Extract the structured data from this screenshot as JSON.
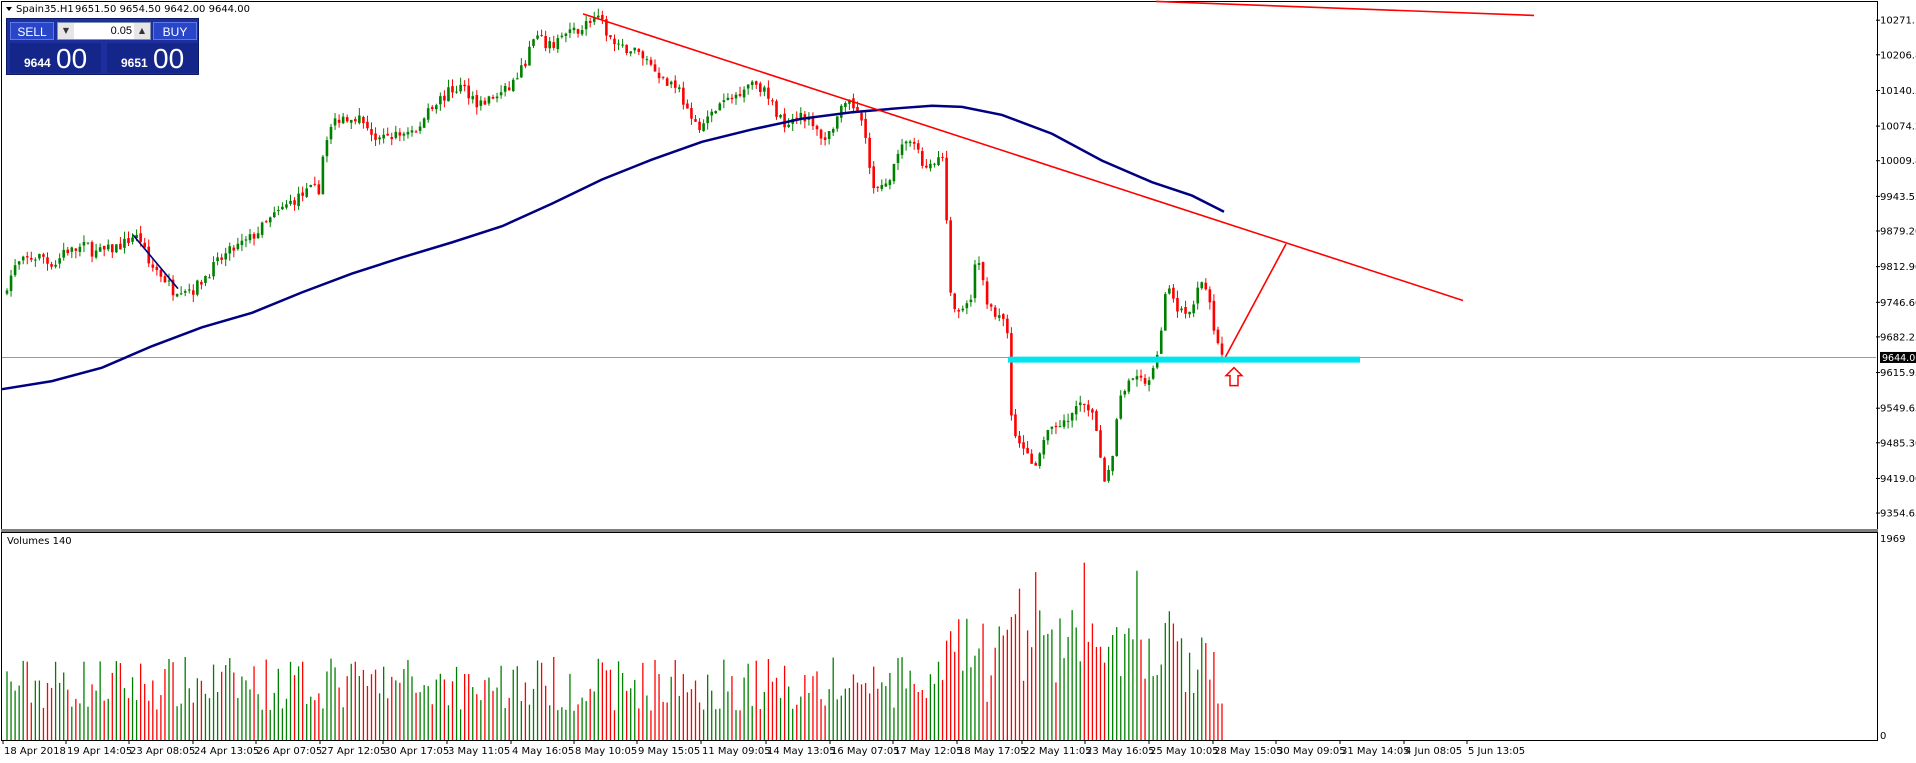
{
  "header": {
    "symbol": "Spain35.H1",
    "ohlc": "9651.50 9654.50 9642.00 9644.00"
  },
  "trade_panel": {
    "sell_label": "SELL",
    "buy_label": "BUY",
    "lot": "0.05",
    "dec_icon": "triangle-down-icon",
    "inc_icon": "triangle-up-icon",
    "sell_small": "9644",
    "sell_big": "00",
    "buy_small": "9651",
    "buy_big": "00"
  },
  "colors": {
    "up": "#008000",
    "down": "#ff0000",
    "ma": "#000080",
    "trendline": "#ff0000",
    "support_zone": "#00e5ee",
    "arrow": "#ff0000",
    "axis": "#000000",
    "price_tag_bg": "#000000"
  },
  "chart_data": [
    {
      "type": "candlestick",
      "title": "Spain35.H1",
      "ylim": [
        9325,
        10305
      ],
      "y_ticks": [
        "10271.15",
        "10206.80",
        "10140.50",
        "10074.20",
        "10009.85",
        "9943.55",
        "9879.20",
        "9812.90",
        "9746.60",
        "9682.25",
        "9615.95",
        "9549.65",
        "9485.30",
        "9419.00",
        "9354.65"
      ],
      "x_ticks": [
        "18 Apr 2018",
        "19 Apr 14:05",
        "23 Apr 08:05",
        "24 Apr 13:05",
        "26 Apr 07:05",
        "27 Apr 12:05",
        "30 Apr 17:05",
        "3 May 11:05",
        "4 May 16:05",
        "8 May 10:05",
        "9 May 15:05",
        "11 May 09:05",
        "14 May 13:05",
        "16 May 07:05",
        "17 May 12:05",
        "18 May 17:05",
        "22 May 11:05",
        "23 May 16:05",
        "25 May 10:05",
        "28 May 15:05",
        "30 May 09:05",
        "31 May 14:05",
        "4 Jun 08:05",
        "5 Jun 13:05"
      ],
      "current_price": 9644.0,
      "current_price_label": "9644.00",
      "series": [
        {
          "kind": "close_path",
          "points": [
            [
              0,
              9760
            ],
            [
              14,
              9815
            ],
            [
              24,
              9825
            ],
            [
              31,
              9830
            ],
            [
              41,
              9832
            ],
            [
              46,
              9820
            ],
            [
              55,
              9820
            ],
            [
              62,
              9845
            ],
            [
              70,
              9842
            ],
            [
              86,
              9852
            ],
            [
              92,
              9838
            ],
            [
              103,
              9842
            ],
            [
              109,
              9845
            ],
            [
              124,
              9858
            ],
            [
              131,
              9870
            ],
            [
              140,
              9862
            ],
            [
              145,
              9820
            ],
            [
              156,
              9805
            ],
            [
              165,
              9785
            ],
            [
              171,
              9770
            ],
            [
              181,
              9775
            ],
            [
              192,
              9770
            ],
            [
              203,
              9795
            ],
            [
              213,
              9815
            ],
            [
              221,
              9830
            ],
            [
              231,
              9845
            ],
            [
              245,
              9860
            ],
            [
              257,
              9880
            ],
            [
              271,
              9905
            ],
            [
              290,
              9935
            ],
            [
              309,
              9955
            ],
            [
              317,
              9958
            ],
            [
              323,
              10050
            ],
            [
              331,
              10080
            ],
            [
              339,
              10090
            ],
            [
              352,
              10095
            ],
            [
              366,
              10075
            ],
            [
              376,
              10040
            ],
            [
              386,
              10058
            ],
            [
              396,
              10055
            ],
            [
              406,
              10068
            ],
            [
              416,
              10060
            ],
            [
              426,
              10110
            ],
            [
              439,
              10125
            ],
            [
              449,
              10140
            ],
            [
              460,
              10148
            ],
            [
              470,
              10130
            ],
            [
              477,
              10115
            ],
            [
              489,
              10125
            ],
            [
              505,
              10140
            ],
            [
              520,
              10180
            ],
            [
              533,
              10240
            ],
            [
              549,
              10220
            ],
            [
              557,
              10240
            ],
            [
              568,
              10245
            ],
            [
              581,
              10260
            ],
            [
              591,
              10275
            ],
            [
              600,
              10265
            ],
            [
              610,
              10230
            ],
            [
              618,
              10215
            ],
            [
              626,
              10220
            ],
            [
              641,
              10205
            ],
            [
              654,
              10180
            ],
            [
              666,
              10150
            ],
            [
              671,
              10160
            ],
            [
              678,
              10140
            ],
            [
              690,
              10075
            ],
            [
              703,
              10080
            ],
            [
              718,
              10115
            ],
            [
              730,
              10125
            ],
            [
              743,
              10150
            ],
            [
              752,
              10160
            ],
            [
              760,
              10145
            ],
            [
              771,
              10110
            ],
            [
              781,
              10080
            ],
            [
              790,
              10090
            ],
            [
              800,
              10100
            ],
            [
              811,
              10070
            ],
            [
              824,
              10050
            ],
            [
              838,
              10100
            ],
            [
              849,
              10115
            ],
            [
              862,
              10090
            ],
            [
              870,
              9955
            ],
            [
              880,
              9955
            ],
            [
              893,
              10000
            ],
            [
              905,
              10055
            ],
            [
              915,
              10025
            ],
            [
              924,
              9990
            ],
            [
              936,
              10010
            ],
            [
              942,
              10020
            ],
            [
              947,
              9790
            ],
            [
              955,
              9715
            ],
            [
              962,
              9730
            ],
            [
              968,
              9750
            ],
            [
              975,
              9835
            ],
            [
              983,
              9765
            ],
            [
              991,
              9720
            ],
            [
              1005,
              9710
            ],
            [
              1010,
              9505
            ],
            [
              1022,
              9480
            ],
            [
              1035,
              9440
            ],
            [
              1047,
              9510
            ],
            [
              1060,
              9525
            ],
            [
              1072,
              9540
            ],
            [
              1084,
              9560
            ],
            [
              1095,
              9510
            ],
            [
              1103,
              9400
            ],
            [
              1110,
              9460
            ],
            [
              1116,
              9550
            ],
            [
              1124,
              9590
            ],
            [
              1136,
              9605
            ],
            [
              1149,
              9595
            ],
            [
              1160,
              9700
            ],
            [
              1165,
              9790
            ],
            [
              1175,
              9740
            ],
            [
              1187,
              9715
            ],
            [
              1197,
              9785
            ],
            [
              1207,
              9755
            ],
            [
              1213,
              9680
            ],
            [
              1222,
              9644
            ]
          ]
        },
        {
          "kind": "moving_average",
          "period": 200,
          "points": [
            [
              0,
              9585
            ],
            [
              50,
              9600
            ],
            [
              100,
              9625
            ],
            [
              150,
              9665
            ],
            [
              200,
              9700
            ],
            [
              250,
              9727
            ],
            [
              300,
              9765
            ],
            [
              350,
              9800
            ],
            [
              400,
              9830
            ],
            [
              450,
              9858
            ],
            [
              500,
              9888
            ],
            [
              550,
              9930
            ],
            [
              600,
              9975
            ],
            [
              650,
              10012
            ],
            [
              700,
              10045
            ],
            [
              750,
              10068
            ],
            [
              800,
              10088
            ],
            [
              850,
              10100
            ],
            [
              900,
              10108
            ],
            [
              930,
              10112
            ],
            [
              960,
              10110
            ],
            [
              1000,
              10095
            ],
            [
              1050,
              10060
            ],
            [
              1100,
              10010
            ],
            [
              1150,
              9970
            ],
            [
              1190,
              9945
            ],
            [
              1222,
              9915
            ]
          ]
        },
        {
          "kind": "volume",
          "name": "Volumes 140",
          "y_max_label": "1969",
          "y_min_label": "0",
          "ymax": 1969
        }
      ],
      "annotations": {
        "trendline_main": [
          [
            581,
            10283
          ],
          [
            1461,
            9750
          ]
        ],
        "trendline_top": [
          [
            1154,
            10306
          ],
          [
            1532,
            10280
          ]
        ],
        "projection": [
          [
            1222,
            9640
          ],
          [
            1284,
            9855
          ]
        ],
        "small_trend": [
          [
            131,
            9872
          ],
          [
            176,
            9772
          ]
        ],
        "support_zone": {
          "x_start": 1006,
          "x_end": 1358,
          "price": 9640
        },
        "arrow": {
          "x": 1232,
          "shape": "outline-up-arrow"
        }
      }
    }
  ]
}
